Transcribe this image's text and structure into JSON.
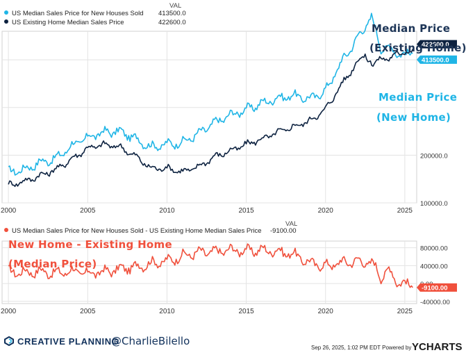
{
  "chart_data": [
    {
      "type": "line",
      "value_header": "VAL",
      "x_ticks": [
        "2000",
        "2005",
        "2010",
        "2015",
        "2020",
        "2025"
      ],
      "y_ticks": [
        "100000.0",
        "200000.0"
      ],
      "ylim": [
        100000,
        460000
      ],
      "xlim": [
        1999.6,
        2025.75
      ],
      "grid": true,
      "legend_position": "top-left",
      "series": [
        {
          "name": "US Median Sales Price for New Houses Sold",
          "last_value_label": "413500.0",
          "color": "#1fb5e6",
          "x": [
            2000,
            2001,
            2002,
            2003,
            2004,
            2005,
            2006,
            2007,
            2008,
            2009,
            2010,
            2011,
            2012,
            2013,
            2014,
            2015,
            2016,
            2017,
            2018,
            2019,
            2020,
            2021,
            2022,
            2022.9,
            2023.5,
            2024,
            2024.5,
            2025,
            2025.5
          ],
          "y": [
            165000,
            170000,
            185000,
            193000,
            220000,
            237000,
            248000,
            250000,
            235000,
            217000,
            223000,
            227000,
            245000,
            268000,
            284000,
            296000,
            309000,
            320000,
            325000,
            318000,
            335000,
            395000,
            445000,
            490000,
            425000,
            425000,
            415000,
            410000,
            413500
          ]
        },
        {
          "name": "US Existing Home Median Sales Price",
          "last_value_label": "422600.0",
          "color": "#0d2240",
          "x": [
            2000,
            2001,
            2002,
            2003,
            2004,
            2005,
            2006,
            2007,
            2008,
            2009,
            2010,
            2011,
            2012,
            2013,
            2014,
            2015,
            2016,
            2017,
            2018,
            2019,
            2020,
            2021,
            2022,
            2022.5,
            2023,
            2023.5,
            2024,
            2024.5,
            2025,
            2025.5
          ],
          "y": [
            138000,
            145000,
            157000,
            170000,
            192000,
            215000,
            222000,
            218000,
            198000,
            172000,
            173000,
            165000,
            176000,
            197000,
            209000,
            223000,
            234000,
            248000,
            260000,
            272000,
            296000,
            348000,
            395000,
            412000,
            385000,
            410000,
            395000,
            420000,
            410000,
            422600
          ]
        }
      ],
      "annotations": [
        "Median Price",
        "(Existing Home)",
        "Median Price",
        "(New Home)"
      ]
    },
    {
      "type": "line",
      "value_header": "VAL",
      "x_ticks": [
        "2000",
        "2005",
        "2010",
        "2015",
        "2020",
        "2025"
      ],
      "y_ticks": [
        "80000.00",
        "40000.00",
        "0.00",
        "-40000.00"
      ],
      "ylim": [
        -45000,
        95000
      ],
      "xlim": [
        1999.6,
        2025.75
      ],
      "grid": true,
      "legend_position": "top-left",
      "series": [
        {
          "name": "US Median Sales Price for New Houses Sold - US Existing Home Median Sales Price",
          "last_value_label": "-9100.00",
          "color": "#f0503c",
          "x": [
            2000,
            2001,
            2002,
            2003,
            2004,
            2005,
            2006,
            2007,
            2008,
            2009,
            2010,
            2011,
            2012,
            2013,
            2014,
            2015,
            2016,
            2017,
            2018,
            2019,
            2020,
            2021,
            2022,
            2023,
            2023.5,
            2024,
            2024.5,
            2025,
            2025.5
          ],
          "y": [
            26000,
            25000,
            27000,
            23000,
            28000,
            22000,
            26000,
            32000,
            37000,
            45000,
            50000,
            62000,
            69000,
            71000,
            75000,
            73000,
            75000,
            72000,
            65000,
            46000,
            39000,
            47000,
            50000,
            45000,
            15000,
            30000,
            5000,
            0,
            -9100
          ]
        }
      ],
      "annotations": [
        "New Home - Existing Home",
        "(Median Price)"
      ]
    }
  ],
  "footer": {
    "brand": "CREATIVE PLANNING",
    "handle": "@CharlieBilello",
    "timestamp": "Sep 26, 2025, 1:02 PM EDT Powered by",
    "ycharts": "YCHARTS"
  },
  "colors": {
    "new_home": "#1fb5e6",
    "existing_home": "#0d2240",
    "spread": "#f0503c",
    "annotation_dark": "#1d3557",
    "annotation_light": "#1fb5e6",
    "grid": "#e3e3e3"
  }
}
